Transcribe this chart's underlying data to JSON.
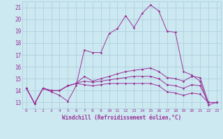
{
  "xlabel": "Windchill (Refroidissement éolien,°C)",
  "xlim": [
    -0.5,
    23.5
  ],
  "ylim": [
    12.5,
    21.5
  ],
  "xticks": [
    0,
    1,
    2,
    3,
    4,
    5,
    6,
    7,
    8,
    9,
    10,
    11,
    12,
    13,
    14,
    15,
    16,
    17,
    18,
    19,
    20,
    21,
    22,
    23
  ],
  "yticks": [
    13,
    14,
    15,
    16,
    17,
    18,
    19,
    20,
    21
  ],
  "background_color": "#cce8f0",
  "grid_color": "#aaccdd",
  "line_color": "#993399",
  "lines": [
    [
      14.2,
      12.9,
      14.2,
      13.9,
      13.6,
      13.1,
      14.4,
      17.4,
      17.2,
      17.2,
      18.8,
      19.2,
      20.3,
      19.3,
      20.5,
      21.2,
      20.7,
      19.0,
      18.9,
      15.6,
      15.3,
      14.8,
      12.8,
      13.0
    ],
    [
      14.2,
      12.9,
      14.2,
      14.0,
      14.0,
      14.4,
      14.6,
      15.2,
      14.8,
      15.0,
      15.2,
      15.4,
      15.6,
      15.7,
      15.8,
      15.9,
      15.6,
      15.1,
      15.0,
      14.8,
      15.2,
      15.1,
      13.0,
      13.0
    ],
    [
      14.2,
      12.9,
      14.2,
      14.0,
      14.0,
      14.4,
      14.6,
      14.8,
      14.7,
      14.8,
      14.9,
      15.0,
      15.1,
      15.2,
      15.2,
      15.2,
      15.0,
      14.5,
      14.4,
      14.2,
      14.5,
      14.4,
      13.0,
      13.0
    ],
    [
      14.2,
      12.9,
      14.2,
      14.0,
      14.0,
      14.4,
      14.6,
      14.5,
      14.4,
      14.5,
      14.6,
      14.6,
      14.6,
      14.6,
      14.6,
      14.6,
      14.4,
      13.9,
      13.8,
      13.6,
      13.8,
      13.7,
      13.0,
      13.0
    ]
  ],
  "figsize": [
    3.2,
    2.0
  ],
  "dpi": 100
}
